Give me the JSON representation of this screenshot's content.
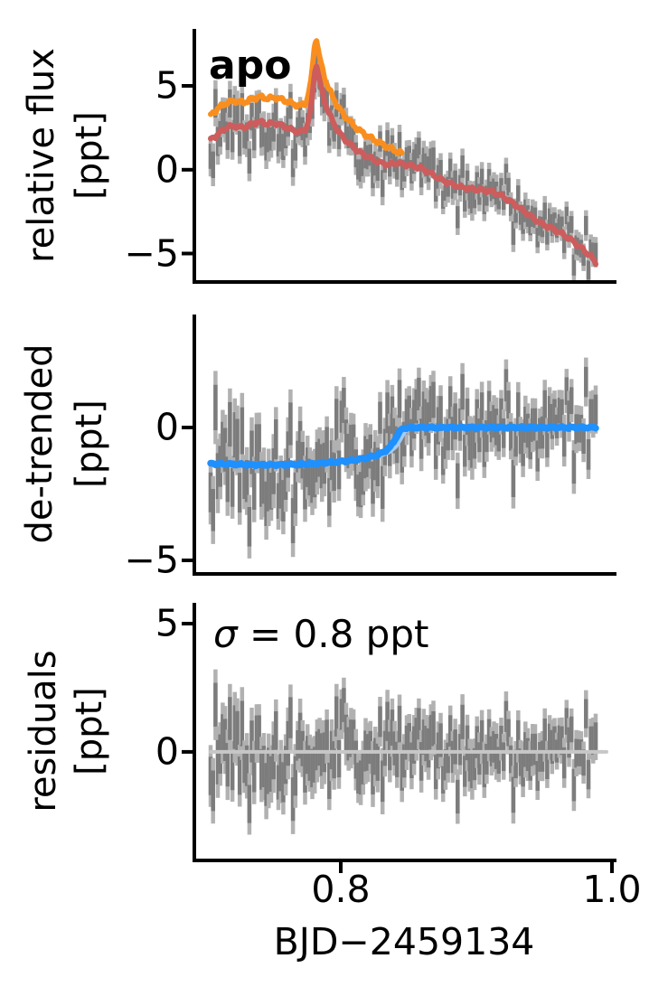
{
  "chart_data": {
    "type": "line",
    "description": "Three stacked light-curve panels: relative flux with flare + trend models, de-trended flux with step model, and residuals",
    "background": "#ffffff",
    "text_color": "#000000",
    "spine_color": "#000000",
    "x_axis": {
      "label": "BJD−2459134",
      "range": [
        0.692,
        1.002
      ],
      "ticks": [
        0.8,
        1.0
      ],
      "tick_labels": [
        "0.8",
        "1.0"
      ]
    },
    "scatter": {
      "n": 160,
      "t_start": 0.704,
      "t_end": 0.988,
      "seed": 11,
      "color_outer": "#b1b1b1",
      "color_inner": "#7c7c7c",
      "bar_width": 4.5,
      "inner_fraction": 0.62,
      "errorbar": {
        "base": 1.32,
        "slope": -1.55,
        "jitter": 0.1,
        "min": 0.72,
        "max": 1.55
      },
      "outliers": [
        {
          "t": 0.7075,
          "dg": 3.6
        },
        {
          "t": 0.732,
          "dg": -2.6
        },
        {
          "t": 0.765,
          "dg": -1.9
        }
      ]
    },
    "panels": [
      {
        "id": "relative-flux",
        "ylabel_line1": "relative flux",
        "ylabel_line2": "[ppt]",
        "ylim": [
          -6.7,
          8.4
        ],
        "yticks": [
          5,
          0,
          -5
        ],
        "ytick_labels": [
          "5",
          "0",
          "−5"
        ],
        "annotation": "apo",
        "scatter_sigma": 0.85,
        "scatter_center": "trend model",
        "lines": [
          {
            "name": "full model",
            "color": "#f98e1f",
            "width": 6,
            "wiggle": 1,
            "points": [
              [
                0.704,
                3.25
              ],
              [
                0.71,
                3.7
              ],
              [
                0.716,
                4.0
              ],
              [
                0.722,
                4.1
              ],
              [
                0.728,
                4.0
              ],
              [
                0.734,
                4.2
              ],
              [
                0.74,
                4.35
              ],
              [
                0.746,
                4.25
              ],
              [
                0.752,
                4.3
              ],
              [
                0.758,
                4.15
              ],
              [
                0.764,
                3.95
              ],
              [
                0.77,
                3.8
              ],
              [
                0.7745,
                4.0
              ],
              [
                0.778,
                5.2
              ],
              [
                0.7805,
                7.3
              ],
              [
                0.782,
                7.9
              ],
              [
                0.7838,
                6.9
              ],
              [
                0.787,
                5.8
              ],
              [
                0.79,
                5.05
              ],
              [
                0.794,
                4.35
              ],
              [
                0.798,
                3.75
              ],
              [
                0.802,
                3.3
              ],
              [
                0.807,
                2.85
              ],
              [
                0.812,
                2.45
              ],
              [
                0.818,
                2.1
              ],
              [
                0.824,
                1.8
              ],
              [
                0.83,
                1.55
              ],
              [
                0.836,
                1.3
              ],
              [
                0.841,
                1.1
              ],
              [
                0.845,
                0.98
              ]
            ]
          },
          {
            "name": "trend model",
            "color": "#cd5c5c",
            "width": 6,
            "wiggle": 1,
            "points": [
              [
                0.704,
                1.8
              ],
              [
                0.71,
                2.15
              ],
              [
                0.716,
                2.55
              ],
              [
                0.722,
                2.6
              ],
              [
                0.728,
                2.5
              ],
              [
                0.734,
                2.72
              ],
              [
                0.74,
                2.86
              ],
              [
                0.746,
                2.72
              ],
              [
                0.752,
                2.78
              ],
              [
                0.758,
                2.6
              ],
              [
                0.764,
                2.38
              ],
              [
                0.77,
                2.22
              ],
              [
                0.7745,
                2.45
              ],
              [
                0.778,
                3.6
              ],
              [
                0.7805,
                5.7
              ],
              [
                0.782,
                6.35
              ],
              [
                0.7838,
                5.5
              ],
              [
                0.787,
                4.4
              ],
              [
                0.79,
                3.6
              ],
              [
                0.794,
                2.9
              ],
              [
                0.798,
                2.3
              ],
              [
                0.802,
                1.9
              ],
              [
                0.807,
                1.5
              ],
              [
                0.812,
                1.15
              ],
              [
                0.818,
                0.85
              ],
              [
                0.824,
                0.6
              ],
              [
                0.83,
                0.4
              ],
              [
                0.836,
                0.3
              ],
              [
                0.841,
                0.42
              ],
              [
                0.847,
                0.32
              ],
              [
                0.853,
                0.22
              ],
              [
                0.859,
                0.1
              ],
              [
                0.865,
                -0.15
              ],
              [
                0.871,
                -0.45
              ],
              [
                0.877,
                -0.7
              ],
              [
                0.883,
                -0.9
              ],
              [
                0.889,
                -1.05
              ],
              [
                0.895,
                -1.13
              ],
              [
                0.901,
                -1.18
              ],
              [
                0.907,
                -1.24
              ],
              [
                0.913,
                -1.35
              ],
              [
                0.919,
                -1.58
              ],
              [
                0.925,
                -1.88
              ],
              [
                0.931,
                -2.22
              ],
              [
                0.937,
                -2.6
              ],
              [
                0.943,
                -2.95
              ],
              [
                0.949,
                -3.25
              ],
              [
                0.955,
                -3.48
              ],
              [
                0.961,
                -3.72
              ],
              [
                0.967,
                -4.02
              ],
              [
                0.973,
                -4.38
              ],
              [
                0.979,
                -4.78
              ],
              [
                0.984,
                -5.15
              ],
              [
                0.988,
                -5.55
              ]
            ]
          }
        ]
      },
      {
        "id": "de-trended",
        "ylabel_line1": "de-trended",
        "ylabel_line2": "[ppt]",
        "ylim": [
          -5.51,
          4.25
        ],
        "yticks": [
          0,
          -5
        ],
        "ytick_labels": [
          "0",
          "−5"
        ],
        "scatter_sigma": 0.92,
        "scatter_center": "step model",
        "lines": [
          {
            "name": "step model",
            "color": "#1e90ff",
            "width": 7.5,
            "wiggle": 0.3,
            "band": {
              "color": "#a5cbf6",
              "shift": 0.005
            },
            "points": [
              [
                0.704,
                -1.36
              ],
              [
                0.72,
                -1.38
              ],
              [
                0.74,
                -1.41
              ],
              [
                0.76,
                -1.4
              ],
              [
                0.78,
                -1.36
              ],
              [
                0.796,
                -1.3
              ],
              [
                0.808,
                -1.24
              ],
              [
                0.818,
                -1.16
              ],
              [
                0.826,
                -1.05
              ],
              [
                0.832,
                -0.92
              ],
              [
                0.837,
                -0.7
              ],
              [
                0.84,
                -0.45
              ],
              [
                0.8425,
                -0.22
              ],
              [
                0.845,
                -0.07
              ],
              [
                0.848,
                -0.01
              ],
              [
                0.855,
                0
              ],
              [
                0.9,
                0
              ],
              [
                0.988,
                0
              ]
            ]
          }
        ]
      },
      {
        "id": "residuals",
        "ylabel_line1": "residuals",
        "ylabel_line2": "[ppt]",
        "ylim": [
          -4.23,
          5.81
        ],
        "yticks": [
          5,
          0
        ],
        "ytick_labels": [
          "5",
          "0"
        ],
        "annotation_sigma": {
          "symbol": "σ",
          "rest": " = 0.8 ppt"
        },
        "scatter_sigma": 0.8,
        "scatter_center": "zero line",
        "lines": [
          {
            "name": "zero line",
            "color": "#c7c7c7",
            "width": 4,
            "wiggle": 0,
            "points": [
              [
                0.704,
                0
              ],
              [
                0.996,
                0
              ]
            ]
          }
        ]
      }
    ]
  }
}
